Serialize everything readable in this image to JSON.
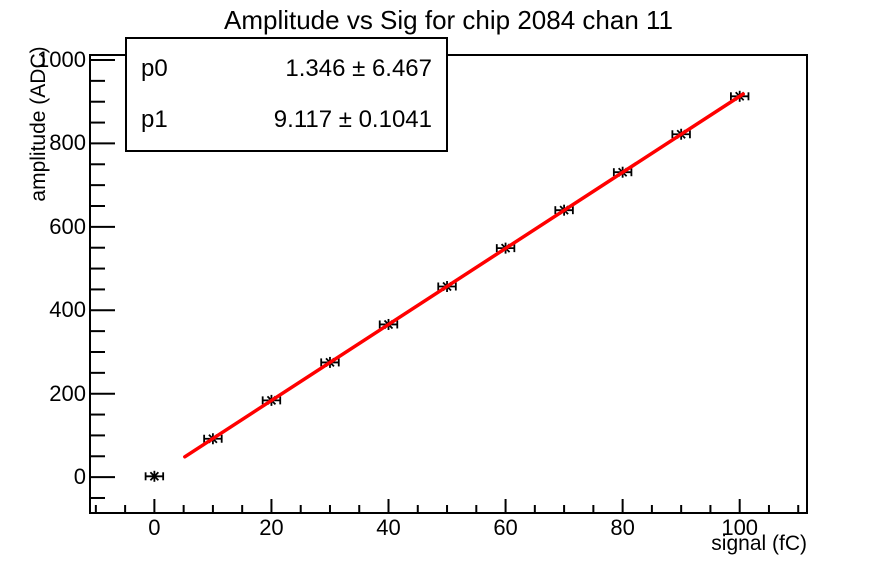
{
  "title": "Amplitude vs Sig for chip 2084 chan 11",
  "stats_box": {
    "rows": [
      {
        "param": "p0",
        "value": "1.346 ± 6.467"
      },
      {
        "param": "p1",
        "value": "9.117 ± 0.1041"
      }
    ]
  },
  "chart_data": {
    "type": "scatter",
    "title": "Amplitude vs Sig for chip 2084 chan 11",
    "xlabel": "signal (fC)",
    "ylabel": "amplitude (ADC)",
    "xlim": [
      -11,
      111.5
    ],
    "ylim": [
      -86,
      1012
    ],
    "x_major_ticks": [
      0,
      20,
      40,
      60,
      80,
      100
    ],
    "x_minor_step": 5,
    "x_minor_range": [
      -10,
      110
    ],
    "y_major_ticks": [
      0,
      200,
      400,
      600,
      800,
      1000
    ],
    "y_minor_step": 50,
    "y_minor_range": [
      -50,
      1000
    ],
    "grid": false,
    "legend": "none",
    "points": {
      "x": [
        0,
        10,
        20,
        30,
        40,
        50,
        60,
        70,
        80,
        90,
        100
      ],
      "y": [
        2,
        92,
        184,
        275,
        366,
        457,
        549,
        640,
        731,
        822,
        913
      ],
      "x_error": 1.5,
      "marker": "asterisk",
      "color": "#000000"
    },
    "fit_line": {
      "p0": 1.346,
      "p1": 9.117,
      "x_start": 5.2,
      "x_end": 100.6,
      "color": "#ff0000"
    },
    "frame_color": "#000000",
    "background": "#ffffff"
  }
}
